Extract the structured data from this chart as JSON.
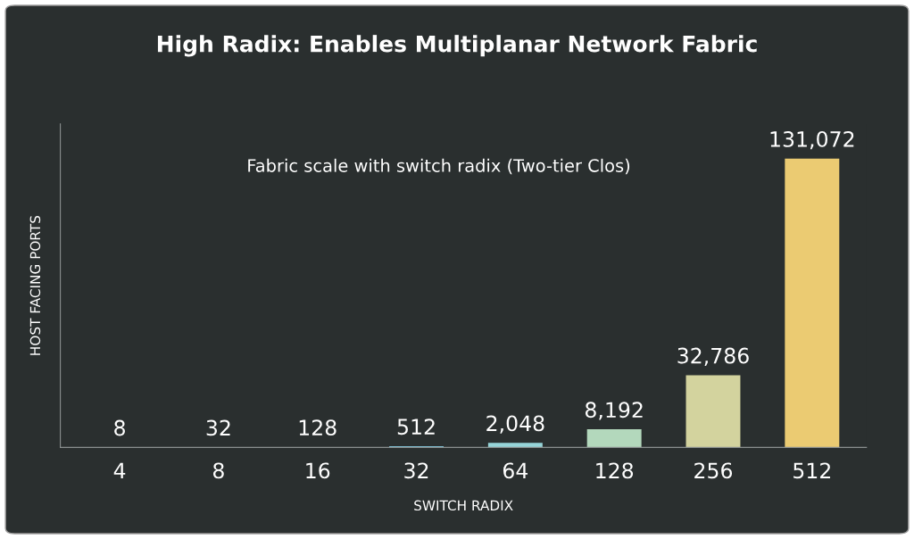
{
  "chart_data": {
    "type": "bar",
    "title": "High Radix: Enables Multiplanar Network Fabric",
    "xlabel": "SWITCH RADIX",
    "ylabel": "HOST FACING PORTS",
    "annotations": [
      "Fabric scale with switch radix (Two-tier Clos)"
    ],
    "categories": [
      "4",
      "8",
      "16",
      "32",
      "64",
      "128",
      "256",
      "512"
    ],
    "values": [
      8,
      32,
      128,
      512,
      2048,
      8192,
      32786,
      131072
    ],
    "colors": [
      "#4f9a96",
      "#5aa8b0",
      "#6cc6e2",
      "#7dcde6",
      "#96d4d8",
      "#b3d8bc",
      "#d3d39e",
      "#ebcb72"
    ],
    "value_labels": [
      "8",
      "32",
      "128",
      "512",
      "2,048",
      "8,192",
      "32,786",
      "131,072"
    ],
    "relative": false,
    "grid": false,
    "legend": false
  }
}
